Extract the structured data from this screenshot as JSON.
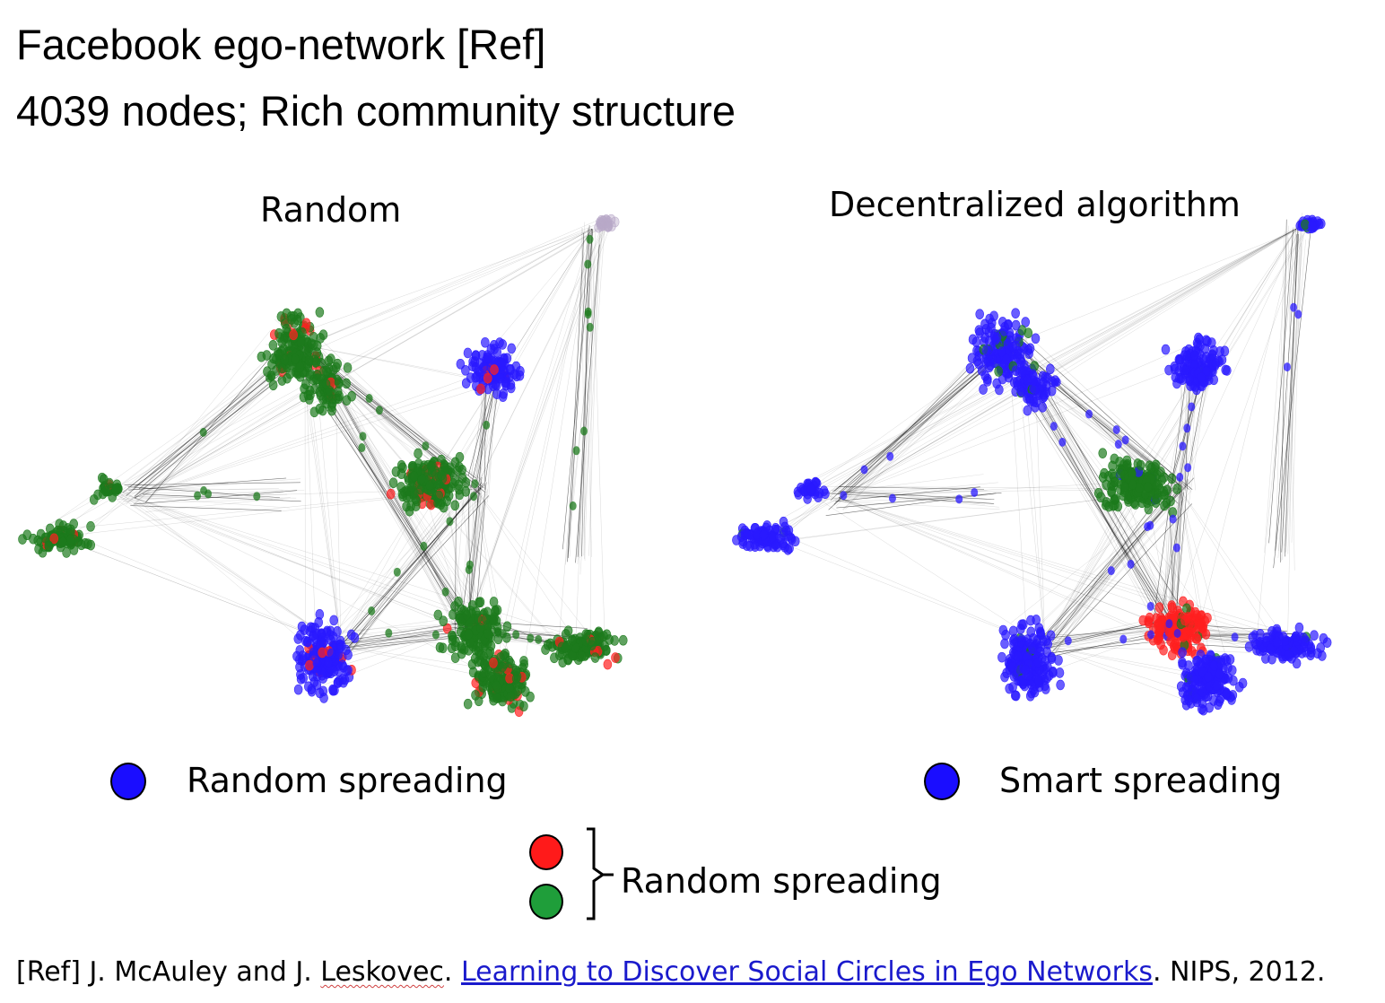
{
  "title_line1": "Facebook ego-network [Ref]",
  "title_line2": "4039 nodes; Rich community structure",
  "panels": [
    {
      "title": "Random"
    },
    {
      "title": "Decentralized algorithm"
    }
  ],
  "legend": {
    "left": {
      "label": "Random spreading",
      "color": "#1a0dff"
    },
    "right": {
      "label": "Smart spreading",
      "color": "#1a0dff"
    },
    "bottom": {
      "label": "Random spreading",
      "colors": [
        "#ff1a1a",
        "#1f9e3a"
      ]
    }
  },
  "reference": {
    "prefix": "[Ref] J. McAuley and J. ",
    "squiggle_word": "Leskovec",
    "mid": ". ",
    "link_text": "Learning to Discover Social Circles in Ego Networks",
    "suffix": ". NIPS, 2012."
  },
  "colors": {
    "blue": "#2a1aff",
    "green": "#1c7a1c",
    "red": "#ff2020",
    "edge": "#000000",
    "faint": "#b8a8c8"
  }
}
